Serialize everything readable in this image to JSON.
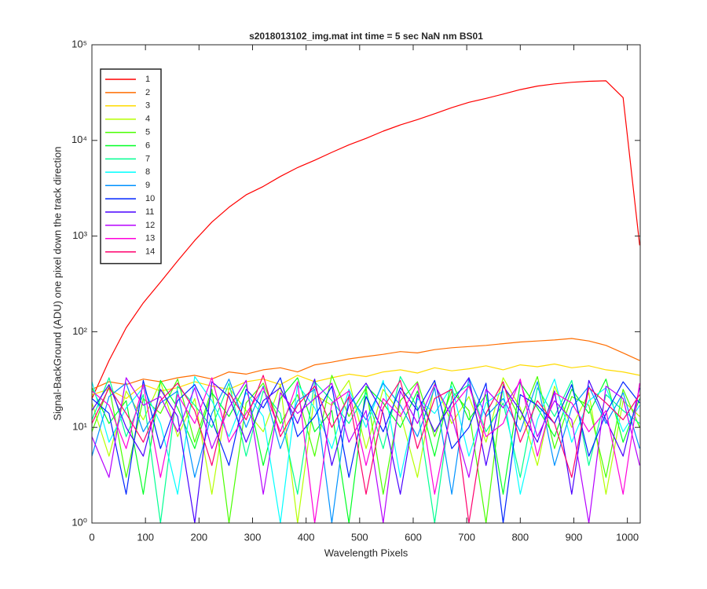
{
  "chart_data": {
    "type": "line",
    "title": "s2018013102_img.mat int time = 5 sec  NaN nm BS01",
    "xlabel": "Wavelength Pixels",
    "ylabel": "Signal-BackGround (ADU) one pixel down the track direction",
    "log_y": true,
    "legend": "northwest",
    "xlim": [
      0,
      1024
    ],
    "xticks": [
      0,
      100,
      200,
      300,
      400,
      500,
      600,
      700,
      800,
      900,
      1000
    ],
    "ylim": [
      1,
      100000
    ],
    "yticks": [
      {
        "value": 1,
        "label": "10⁰"
      },
      {
        "value": 10,
        "label": "10¹"
      },
      {
        "value": 100,
        "label": "10²"
      },
      {
        "value": 1000,
        "label": "10³"
      },
      {
        "value": 10000,
        "label": "10⁴"
      },
      {
        "value": 100000,
        "label": "10⁵"
      }
    ],
    "x": [
      0,
      32,
      64,
      96,
      128,
      160,
      192,
      224,
      256,
      288,
      320,
      352,
      384,
      416,
      448,
      480,
      512,
      544,
      576,
      608,
      640,
      672,
      704,
      736,
      768,
      800,
      832,
      864,
      896,
      928,
      960,
      992,
      1023
    ],
    "series": [
      {
        "name": "1",
        "color": "#ff0000",
        "values": [
          20,
          50,
          110,
          200,
          330,
          550,
          900,
          1400,
          2000,
          2700,
          3300,
          4200,
          5200,
          6200,
          7500,
          9000,
          10500,
          12500,
          14500,
          16500,
          19000,
          22000,
          25000,
          27500,
          30500,
          34000,
          37000,
          39000,
          40500,
          41500,
          42000,
          28000,
          800
        ]
      },
      {
        "name": "2",
        "color": "#ff6d00",
        "values": [
          25,
          30,
          28,
          32,
          30,
          33,
          35,
          32,
          38,
          36,
          40,
          42,
          38,
          45,
          48,
          52,
          55,
          58,
          62,
          60,
          65,
          68,
          70,
          72,
          75,
          78,
          80,
          82,
          85,
          80,
          72,
          60,
          50
        ]
      },
      {
        "name": "3",
        "color": "#ffdb00",
        "values": [
          22,
          25,
          20,
          28,
          24,
          26,
          30,
          27,
          25,
          30,
          32,
          28,
          35,
          30,
          33,
          36,
          34,
          38,
          40,
          37,
          42,
          39,
          41,
          44,
          40,
          45,
          43,
          46,
          42,
          44,
          40,
          38,
          35
        ]
      },
      {
        "name": "4",
        "color": "#b6ff00",
        "values": [
          18,
          5,
          24,
          12,
          30,
          8,
          20,
          2,
          26,
          15,
          9,
          28,
          1,
          22,
          17,
          31,
          6,
          25,
          14,
          3,
          29,
          11,
          21,
          7,
          33,
          16,
          4,
          27,
          10,
          23,
          2,
          19,
          13
        ]
      },
      {
        "name": "5",
        "color": "#49ff00",
        "values": [
          9,
          27,
          3,
          20,
          14,
          32,
          7,
          25,
          1,
          18,
          29,
          11,
          22,
          5,
          35,
          13,
          26,
          2,
          19,
          30,
          8,
          24,
          15,
          1,
          28,
          12,
          34,
          6,
          21,
          17,
          3,
          25,
          10
        ]
      },
      {
        "name": "6",
        "color": "#00ff24",
        "values": [
          26,
          11,
          19,
          2,
          31,
          16,
          6,
          23,
          13,
          28,
          4,
          20,
          33,
          9,
          15,
          1,
          27,
          18,
          10,
          24,
          5,
          30,
          12,
          22,
          2,
          29,
          16,
          8,
          25,
          14,
          32,
          7,
          20
        ]
      },
      {
        "name": "7",
        "color": "#00ff92",
        "values": [
          12,
          33,
          8,
          22,
          1,
          27,
          17,
          10,
          29,
          5,
          24,
          14,
          2,
          30,
          19,
          11,
          23,
          6,
          34,
          16,
          1,
          21,
          28,
          9,
          18,
          3,
          26,
          13,
          31,
          4,
          22,
          15,
          11
        ]
      },
      {
        "name": "8",
        "color": "#00ffff",
        "values": [
          30,
          7,
          16,
          26,
          11,
          2,
          34,
          19,
          8,
          23,
          13,
          1,
          28,
          16,
          6,
          25,
          10,
          31,
          3,
          20,
          14,
          27,
          5,
          18,
          24,
          2,
          12,
          32,
          7,
          19,
          26,
          9,
          17
        ]
      },
      {
        "name": "9",
        "color": "#0092ff",
        "values": [
          5,
          21,
          29,
          9,
          18,
          24,
          3,
          14,
          32,
          10,
          27,
          6,
          19,
          25,
          1,
          22,
          12,
          29,
          17,
          8,
          26,
          2,
          33,
          13,
          20,
          9,
          30,
          4,
          16,
          27,
          11,
          23,
          6
        ]
      },
      {
        "name": "10",
        "color": "#0024ff",
        "values": [
          20,
          14,
          2,
          31,
          6,
          19,
          28,
          12,
          4,
          25,
          16,
          33,
          8,
          13,
          27,
          3,
          21,
          9,
          26,
          15,
          31,
          6,
          10,
          29,
          1,
          22,
          17,
          11,
          28,
          5,
          14,
          30,
          18
        ]
      },
      {
        "name": "11",
        "color": "#4900ff",
        "values": [
          15,
          28,
          10,
          5,
          25,
          13,
          1,
          30,
          21,
          7,
          19,
          26,
          11,
          32,
          4,
          17,
          29,
          14,
          2,
          22,
          9,
          18,
          33,
          4,
          27,
          15,
          7,
          24,
          2,
          31,
          12,
          5,
          26
        ]
      },
      {
        "name": "12",
        "color": "#b600ff",
        "values": [
          8,
          3,
          33,
          17,
          21,
          9,
          26,
          6,
          16,
          31,
          2,
          23,
          14,
          20,
          29,
          7,
          15,
          1,
          24,
          11,
          28,
          13,
          3,
          25,
          16,
          30,
          8,
          19,
          12,
          1,
          27,
          20,
          4
        ]
      },
      {
        "name": "13",
        "color": "#ff00db",
        "values": [
          24,
          17,
          6,
          28,
          3,
          22,
          11,
          33,
          7,
          14,
          26,
          9,
          30,
          1,
          18,
          24,
          4,
          20,
          13,
          29,
          2,
          16,
          27,
          8,
          11,
          32,
          5,
          23,
          18,
          9,
          15,
          2,
          29
        ]
      },
      {
        "name": "14",
        "color": "#ff006d",
        "values": [
          11,
          26,
          14,
          7,
          19,
          29,
          15,
          4,
          23,
          12,
          35,
          8,
          17,
          27,
          10,
          21,
          2,
          16,
          31,
          6,
          20,
          25,
          1,
          14,
          30,
          7,
          19,
          11,
          3,
          26,
          18,
          12,
          22
        ]
      }
    ]
  }
}
